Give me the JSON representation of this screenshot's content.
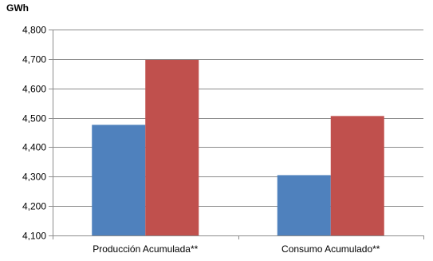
{
  "chart_data": {
    "type": "bar",
    "ylabel": "GWh",
    "categories": [
      "Producción Acumulada**",
      "Consumo Acumulado**"
    ],
    "series": [
      {
        "values": [
          4476,
          4305
        ],
        "color": "#4F81BD"
      },
      {
        "values": [
          4697,
          4506
        ],
        "color": "#C0504D"
      }
    ],
    "ylim": [
      4100,
      4800
    ],
    "yticks": [
      4100,
      4200,
      4300,
      4400,
      4500,
      4600,
      4700,
      4800
    ],
    "ytick_labels": [
      "4,100",
      "4,200",
      "4,300",
      "4,400",
      "4,500",
      "4,600",
      "4,700",
      "4,800"
    ],
    "grid": true
  }
}
